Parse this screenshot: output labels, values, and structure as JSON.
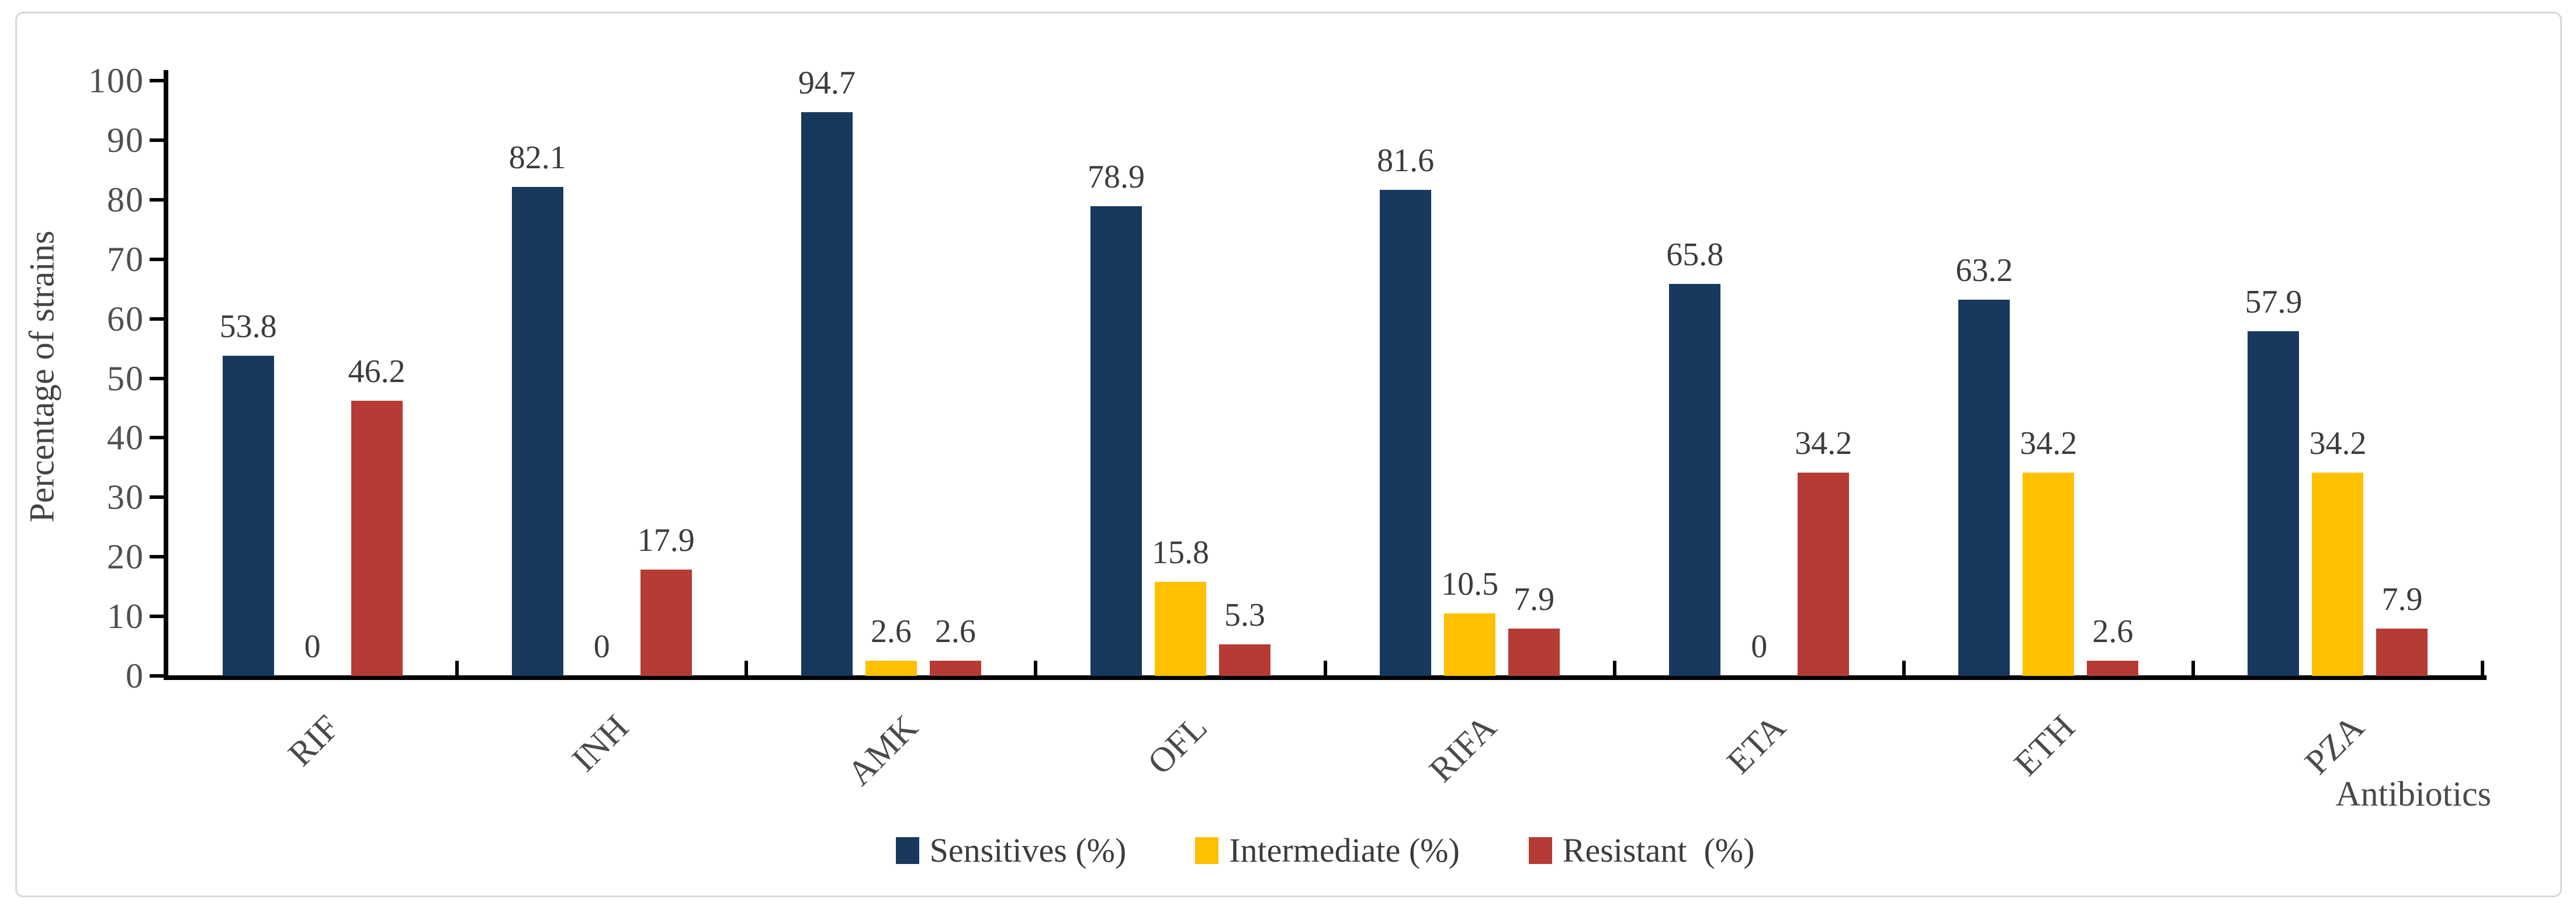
{
  "figure": {
    "ylabel": "Percentage of strains",
    "xlabel": "Antibiotics"
  },
  "chart_data": {
    "type": "bar",
    "title": "",
    "categories": [
      "RIF",
      "INH",
      "AMK",
      "OFL",
      "RIFA",
      "ETA",
      "ETH",
      "PZA"
    ],
    "series": [
      {
        "name": "Sensitives (%)",
        "color": "#17395E",
        "values": [
          53.8,
          82.1,
          94.7,
          78.9,
          81.6,
          65.8,
          63.2,
          57.9
        ]
      },
      {
        "name": "Intermediate (%)",
        "color": "#FFC000",
        "values": [
          0,
          0,
          2.6,
          15.8,
          10.5,
          0,
          34.2,
          34.2
        ]
      },
      {
        "name": "Resistant  (%)",
        "color": "#B63B34",
        "values": [
          46.2,
          17.9,
          2.6,
          5.3,
          7.9,
          34.2,
          2.6,
          7.9
        ]
      }
    ],
    "xlabel": "Antibiotics",
    "ylabel": "Percentage of strains",
    "ylim": [
      0,
      100
    ],
    "yticks": [
      0,
      10,
      20,
      30,
      40,
      50,
      60,
      70,
      80,
      90,
      100
    ],
    "grid": false,
    "legend_position": "bottom",
    "value_labels": true,
    "axis_color": "#000000",
    "tick_label_color": "#4f4f4f",
    "value_label_color": "#3c3c3c"
  }
}
